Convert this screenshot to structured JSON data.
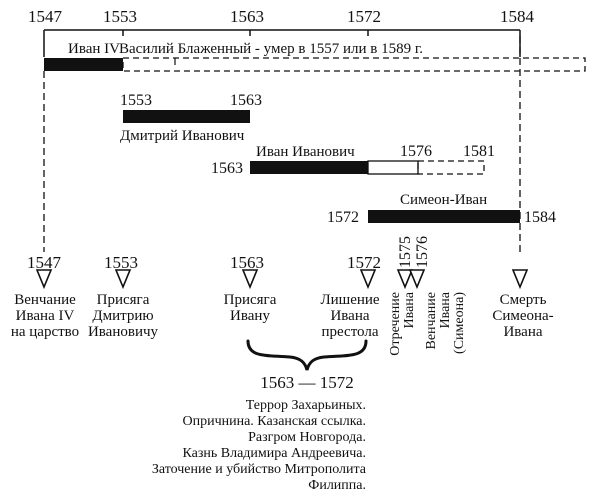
{
  "colors": {
    "ink": "#111111",
    "paper": "#ffffff"
  },
  "top_years": {
    "y1547": "1547",
    "y1553": "1553",
    "y1563": "1563",
    "y1572": "1572",
    "y1584": "1584"
  },
  "ivan4": {
    "label": "Иван IV"
  },
  "vasily": {
    "label": "Василий Блаженный - умер в 1557 или в 1589 г."
  },
  "dmitry": {
    "start": "1553",
    "end": "1563",
    "label": "Дмитрий Иванович"
  },
  "ivan_ivanovich": {
    "label": "Иван Иванович",
    "start": "1563",
    "end": "1576",
    "dashed_end": "1581"
  },
  "simeon": {
    "label": "Симеон-Иван",
    "start": "1572",
    "end": "1584"
  },
  "events": {
    "e1547": {
      "year": "1547",
      "lines": [
        "Венчание",
        "Ивана IV",
        "на царство"
      ]
    },
    "e1553": {
      "year": "1553",
      "lines": [
        "Присяга",
        "Дмитрию",
        "Ивановичу"
      ]
    },
    "e1563": {
      "year": "1563",
      "lines": [
        "Присяга",
        "Ивану"
      ]
    },
    "e1572": {
      "year": "1572",
      "lines": [
        "Лишение",
        "Ивана",
        "престола"
      ]
    },
    "e1575": {
      "year": "1575",
      "lines": [
        "Отречение",
        "Ивана"
      ]
    },
    "e1576": {
      "year": "1576",
      "lines": [
        "Венчание",
        "Ивана",
        "(Симеона)"
      ]
    },
    "e1584": {
      "year": "1584",
      "lines": [
        "Смерть",
        "Симеона-",
        "Ивана"
      ]
    }
  },
  "period": {
    "range": "1563 — 1572",
    "items": [
      "Террор Захарьиных.",
      "Опричнина. Казанская ссылка.",
      "Разгром Новгорода.",
      "Казнь Владимира Андреевича.",
      "Заточение и убийство Митрополита",
      "Филиппа."
    ]
  }
}
